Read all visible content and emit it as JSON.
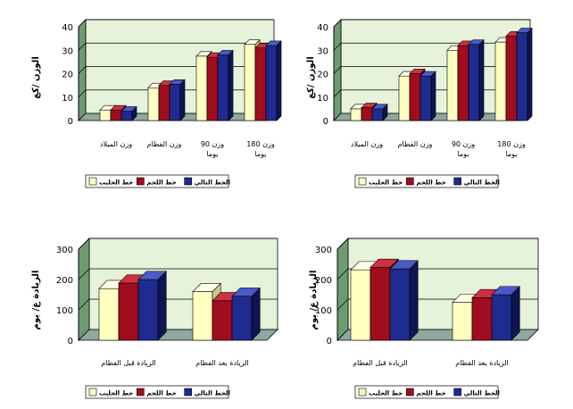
{
  "colors": {
    "series": [
      "#FFFFC0",
      "#A00D1E",
      "#1E2B8F"
    ],
    "series_side": [
      "#C8C890",
      "#5E0610",
      "#0E1550"
    ],
    "series_top": [
      "#FFFFE8",
      "#D03040",
      "#4A5AC8"
    ],
    "plot_bg": "#E6F2DA",
    "plot_side": "#6E9A70",
    "floor": "#8FA8A0",
    "grid": "#000000"
  },
  "chart_data": [
    {
      "id": "weights-left",
      "type": "bar",
      "ylabel": "الوزن /كغ",
      "ylim": [
        0,
        40
      ],
      "yticks": [
        0,
        10,
        20,
        30,
        40
      ],
      "categories": [
        [
          "وزن الميلاد"
        ],
        [
          "وزن الفطام"
        ],
        [
          "وزن 90",
          "يوما"
        ],
        [
          "وزن 180",
          "يوما"
        ]
      ],
      "series": [
        {
          "name": "خط الحليب",
          "values": [
            4.5,
            14,
            27.5,
            32.5
          ]
        },
        {
          "name": "خط اللحم",
          "values": [
            4.5,
            15,
            27,
            31
          ]
        },
        {
          "name": "الخط التالي",
          "values": [
            4,
            15.5,
            28,
            32
          ]
        }
      ],
      "legend": "bottom"
    },
    {
      "id": "weights-right",
      "type": "bar",
      "ylabel": "الوزن /كغ",
      "ylim": [
        0,
        40
      ],
      "yticks": [
        0,
        10,
        20,
        30,
        40
      ],
      "categories": [
        [
          "وزن الميلاد"
        ],
        [
          "وزن الفطام"
        ],
        [
          "وزن 90",
          "يوما"
        ],
        [
          "وزن 180",
          "يوما"
        ]
      ],
      "series": [
        {
          "name": "خط الحليب",
          "values": [
            5,
            19,
            30,
            33.5
          ]
        },
        {
          "name": "خط اللحم",
          "values": [
            5.5,
            20,
            32,
            36
          ]
        },
        {
          "name": "الخط التالي",
          "values": [
            5,
            19,
            32.5,
            37.5
          ]
        }
      ],
      "legend": "bottom"
    },
    {
      "id": "gain-left",
      "type": "bar",
      "ylabel": "الزيادة غ/ يوم",
      "ylim": [
        0,
        300
      ],
      "yticks": [
        0,
        100,
        200,
        300
      ],
      "categories": [
        [
          "الزيادة قبل الفطام"
        ],
        [
          "الزيادة بعد الفطام"
        ]
      ],
      "series": [
        {
          "name": "خط الحليب",
          "values": [
            170,
            160
          ]
        },
        {
          "name": "خط اللحم",
          "values": [
            188,
            130
          ]
        },
        {
          "name": "الخط التالي",
          "values": [
            200,
            145
          ]
        }
      ],
      "legend": "bottom"
    },
    {
      "id": "gain-right",
      "type": "bar",
      "ylabel": "الزيادة غ/ يوم",
      "ylim": [
        0,
        300
      ],
      "yticks": [
        0,
        100,
        200,
        300
      ],
      "categories": [
        [
          "الزيادة قبل الفطام"
        ],
        [
          "الزيادة بعد الفطام"
        ]
      ],
      "series": [
        {
          "name": "خط الحليب",
          "values": [
            232,
            125
          ]
        },
        {
          "name": "خط اللحم",
          "values": [
            240,
            140
          ]
        },
        {
          "name": "الخط التالي",
          "values": [
            235,
            150
          ]
        }
      ],
      "legend": "bottom"
    }
  ]
}
